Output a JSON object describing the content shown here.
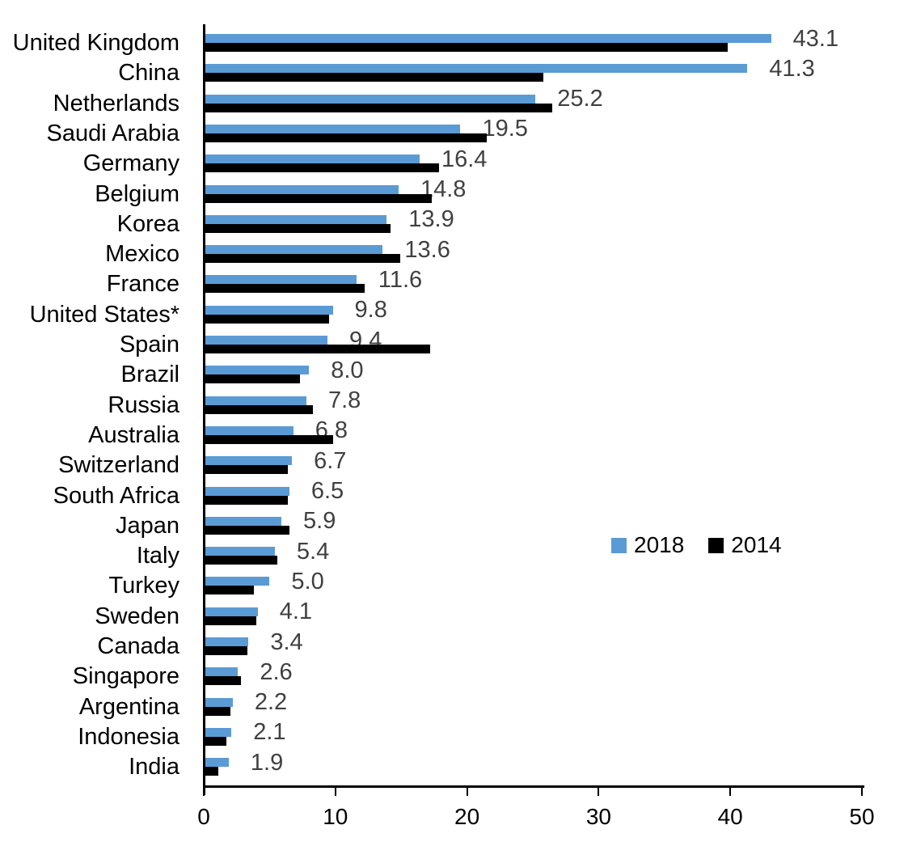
{
  "chart_data": {
    "type": "bar",
    "orientation": "horizontal",
    "title": "",
    "categories": [
      "United Kingdom",
      "China",
      "Netherlands",
      "Saudi Arabia",
      "Germany",
      "Belgium",
      "Korea",
      "Mexico",
      "France",
      "United States*",
      "Spain",
      "Brazil",
      "Russia",
      "Australia",
      "Switzerland",
      "South Africa",
      "Japan",
      "Italy",
      "Turkey",
      "Sweden",
      "Canada",
      "Singapore",
      "Argentina",
      "Indonesia",
      "India"
    ],
    "series": [
      {
        "name": "2018",
        "color": "#5B9BD5",
        "values": [
          43.1,
          41.3,
          25.2,
          19.5,
          16.4,
          14.8,
          13.9,
          13.6,
          11.6,
          9.8,
          9.4,
          8.0,
          7.8,
          6.8,
          6.7,
          6.5,
          5.9,
          5.4,
          5.0,
          4.1,
          3.4,
          2.6,
          2.2,
          2.1,
          1.9
        ]
      },
      {
        "name": "2014",
        "color": "#000000",
        "values": [
          39.8,
          25.8,
          26.5,
          21.5,
          17.9,
          17.3,
          14.2,
          14.9,
          12.2,
          9.5,
          17.2,
          7.3,
          8.3,
          9.8,
          6.4,
          6.4,
          6.5,
          5.6,
          3.8,
          4.0,
          3.3,
          2.8,
          2.0,
          1.7,
          1.1
        ]
      }
    ],
    "data_labels": {
      "labeled_series": "2018",
      "format": "one-decimal",
      "color": "#404040"
    },
    "xlabel": "",
    "ylabel": "",
    "xlim": [
      0,
      50
    ],
    "x_ticks": [
      0,
      10,
      20,
      30,
      40,
      50
    ],
    "grid": false,
    "legend": {
      "position": "middle-right",
      "entries": [
        "2018",
        "2014"
      ]
    }
  }
}
